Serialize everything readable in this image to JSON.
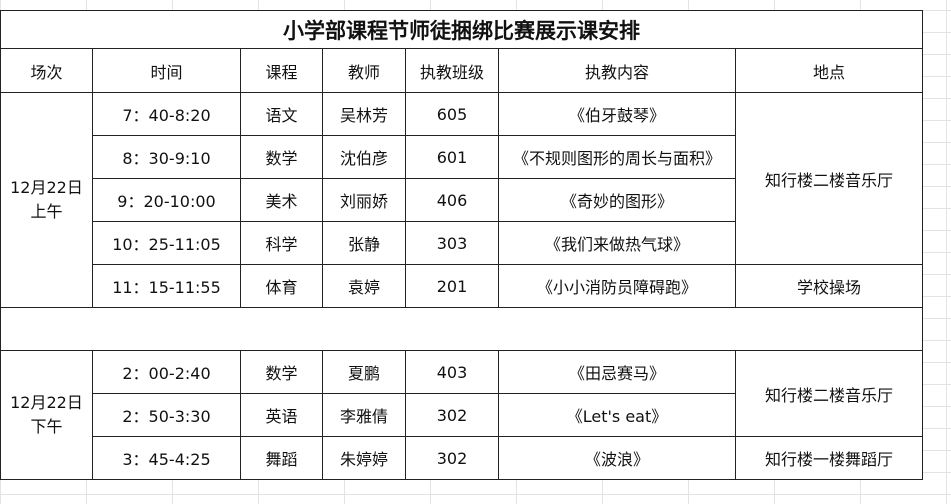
{
  "title": "小学部课程节师徒捆绑比赛展示课安排",
  "headers": [
    "场次",
    "时间",
    "课程",
    "教师",
    "执教班级",
    "执教内容",
    "地点"
  ],
  "morning": {
    "session_date": "12月22日",
    "session_period": "上午",
    "rows": [
      {
        "time": "7：40-8:20",
        "subject": "语文",
        "teacher": "吴林芳",
        "class": "605",
        "content": "《伯牙鼓琴》"
      },
      {
        "time": "8：30-9:10",
        "subject": "数学",
        "teacher": "沈伯彦",
        "class": "601",
        "content": "《不规则图形的周长与面积》"
      },
      {
        "time": "9：20-10:00",
        "subject": "美术",
        "teacher": "刘丽娇",
        "class": "406",
        "content": "《奇妙的图形》"
      },
      {
        "time": "10：25-11:05",
        "subject": "科学",
        "teacher": "张静",
        "class": "303",
        "content": "《我们来做热气球》"
      },
      {
        "time": "11：15-11:55",
        "subject": "体育",
        "teacher": "袁婷",
        "class": "201",
        "content": "《小小消防员障碍跑》"
      }
    ],
    "locations": [
      "知行楼二楼音乐厅",
      "学校操场"
    ]
  },
  "afternoon": {
    "session_date": "12月22日",
    "session_period": "下午",
    "rows": [
      {
        "time": "2：00-2:40",
        "subject": "数学",
        "teacher": "夏鹏",
        "class": "403",
        "content": "《田忌赛马》"
      },
      {
        "time": "2：50-3:30",
        "subject": "英语",
        "teacher": "李雅倩",
        "class": "302",
        "content": "《Let's eat》"
      },
      {
        "time": "3：45-4:25",
        "subject": "舞蹈",
        "teacher": "朱婷婷",
        "class": "302",
        "content": "《波浪》"
      }
    ],
    "locations": [
      "知行楼二楼音乐厅",
      "知行楼一楼舞蹈厅"
    ]
  }
}
